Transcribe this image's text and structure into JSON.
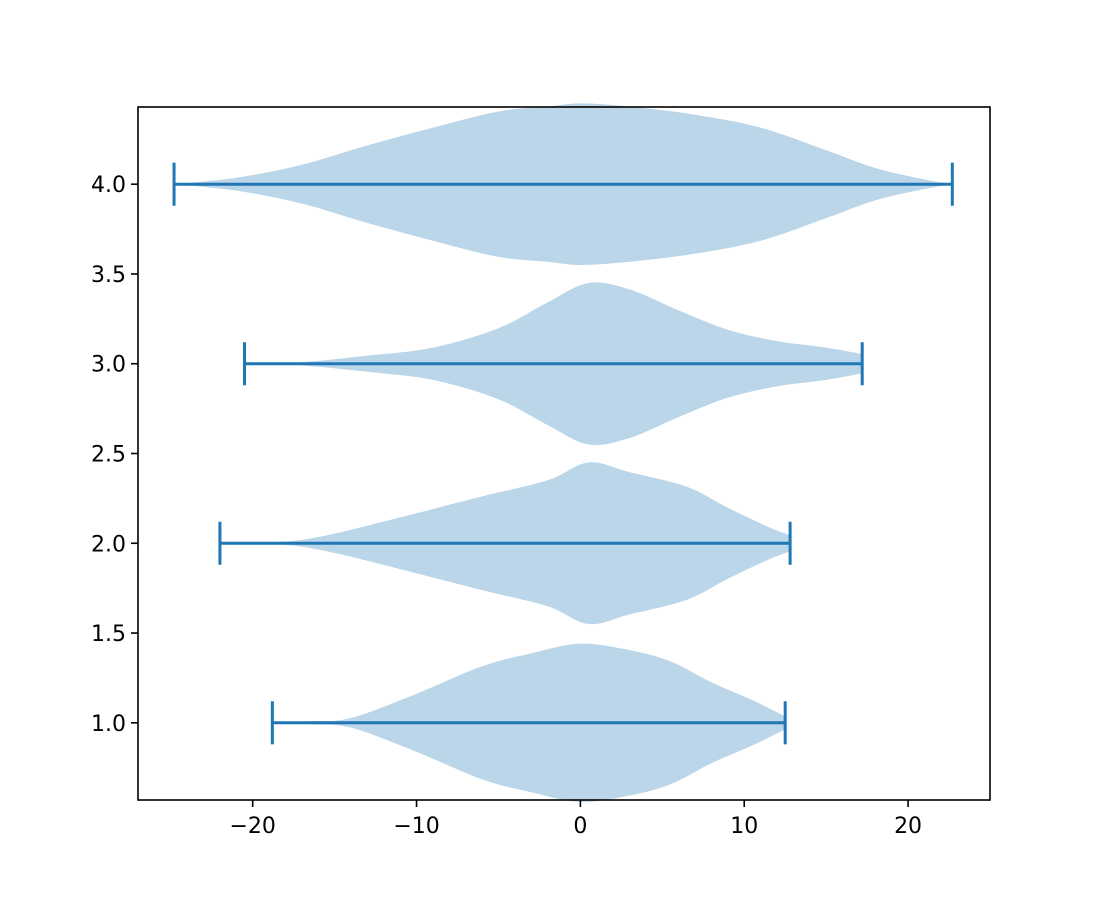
{
  "chart_data": {
    "type": "violin",
    "orientation": "horizontal",
    "title": "",
    "xlabel": "",
    "ylabel": "",
    "xlim": [
      -27,
      25
    ],
    "ylim": [
      0.57,
      4.43
    ],
    "xticks": [
      -20,
      -10,
      0,
      10,
      20
    ],
    "xtick_labels": [
      "−20",
      "−10",
      "0",
      "10",
      "20"
    ],
    "yticks": [
      1.0,
      1.5,
      2.0,
      2.5,
      3.0,
      3.5,
      4.0
    ],
    "ytick_labels": [
      "1.0",
      "1.5",
      "2.0",
      "2.5",
      "3.0",
      "3.5",
      "4.0"
    ],
    "grid": false,
    "legend": false,
    "colors": {
      "body": "#1f77b4",
      "body_alpha": 0.3,
      "extrema": "#1f77b4"
    },
    "violins": [
      {
        "position": 1.0,
        "min": -18.8,
        "max": 12.5,
        "density": [
          [
            -18.8,
            0.0
          ],
          [
            -16.5,
            0.01
          ],
          [
            -14.0,
            0.03
          ],
          [
            -10.0,
            0.18
          ],
          [
            -6.0,
            0.35
          ],
          [
            -3.0,
            0.43
          ],
          [
            0.0,
            0.49
          ],
          [
            3.0,
            0.45
          ],
          [
            5.5,
            0.38
          ],
          [
            8.0,
            0.25
          ],
          [
            10.5,
            0.14
          ],
          [
            12.5,
            0.04
          ]
        ]
      },
      {
        "position": 2.0,
        "min": -22.0,
        "max": 12.8,
        "density": [
          [
            -22.0,
            0.0
          ],
          [
            -18.0,
            0.01
          ],
          [
            -15.0,
            0.06
          ],
          [
            -11.0,
            0.16
          ],
          [
            -6.0,
            0.29
          ],
          [
            -2.0,
            0.39
          ],
          [
            0.5,
            0.5
          ],
          [
            3.0,
            0.44
          ],
          [
            6.5,
            0.35
          ],
          [
            9.0,
            0.22
          ],
          [
            11.5,
            0.1
          ],
          [
            12.8,
            0.05
          ]
        ]
      },
      {
        "position": 3.0,
        "min": -20.5,
        "max": 17.2,
        "density": [
          [
            -20.5,
            0.0
          ],
          [
            -17.0,
            0.01
          ],
          [
            -13.0,
            0.05
          ],
          [
            -9.0,
            0.1
          ],
          [
            -5.0,
            0.22
          ],
          [
            -2.0,
            0.38
          ],
          [
            0.5,
            0.5
          ],
          [
            3.0,
            0.46
          ],
          [
            6.0,
            0.33
          ],
          [
            9.0,
            0.21
          ],
          [
            12.0,
            0.14
          ],
          [
            15.0,
            0.1
          ],
          [
            17.2,
            0.06
          ]
        ]
      },
      {
        "position": 4.0,
        "min": -24.8,
        "max": 22.7,
        "density": [
          [
            -24.8,
            0.0
          ],
          [
            -21.0,
            0.04
          ],
          [
            -17.0,
            0.12
          ],
          [
            -13.0,
            0.24
          ],
          [
            -9.0,
            0.35
          ],
          [
            -5.0,
            0.45
          ],
          [
            -2.0,
            0.48
          ],
          [
            0.0,
            0.5
          ],
          [
            3.0,
            0.48
          ],
          [
            7.0,
            0.43
          ],
          [
            11.0,
            0.35
          ],
          [
            15.0,
            0.21
          ],
          [
            18.0,
            0.1
          ],
          [
            21.0,
            0.03
          ],
          [
            22.7,
            0.0
          ]
        ]
      }
    ]
  }
}
